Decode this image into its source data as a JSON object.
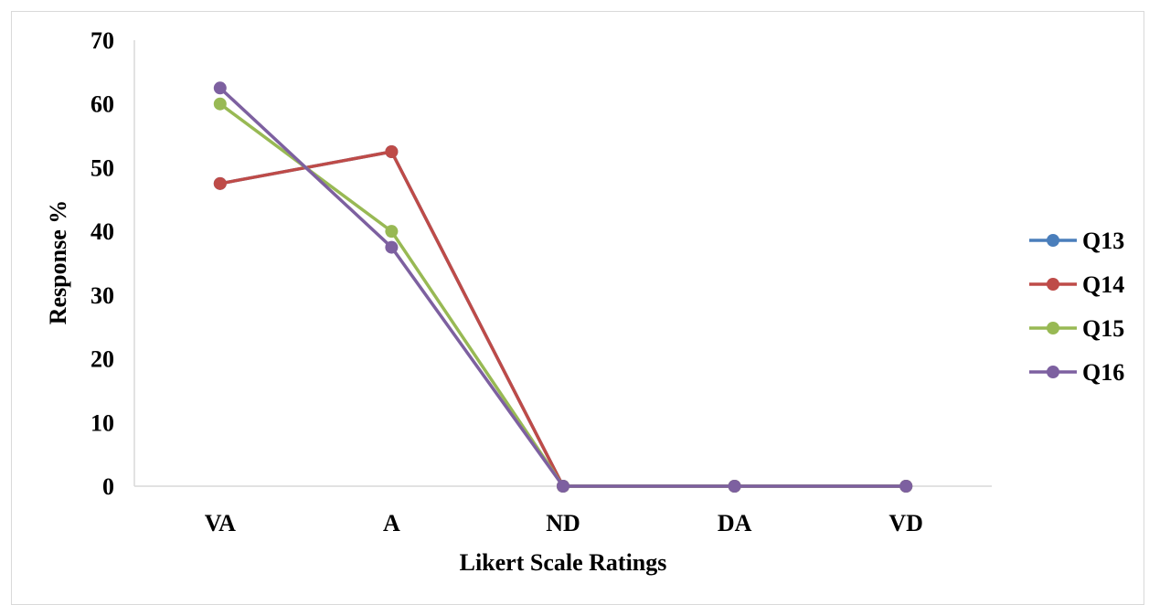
{
  "chart_data": {
    "type": "line",
    "title": "",
    "xlabel": "Likert Scale Ratings",
    "ylabel": "Response %",
    "categories": [
      "VA",
      "A",
      "ND",
      "DA",
      "VD"
    ],
    "ylim": [
      0,
      70
    ],
    "yticks": [
      "0",
      "10",
      "20",
      "30",
      "40",
      "50",
      "60",
      "70"
    ],
    "grid": false,
    "legend_position": "right",
    "series": [
      {
        "name": "Q13",
        "color": "#4a7ebb",
        "values": [
          47.5,
          52.5,
          0,
          0,
          0
        ]
      },
      {
        "name": "Q14",
        "color": "#be4b48",
        "values": [
          47.5,
          52.5,
          0,
          0,
          0
        ]
      },
      {
        "name": "Q15",
        "color": "#98b954",
        "values": [
          60,
          40,
          0,
          0,
          0
        ]
      },
      {
        "name": "Q16",
        "color": "#7d60a0",
        "values": [
          62.5,
          37.5,
          0,
          0,
          0
        ]
      }
    ]
  }
}
